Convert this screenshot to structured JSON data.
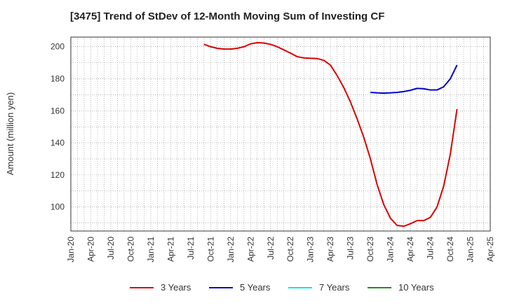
{
  "title": "[3475]  Trend of StDev of 12-Month Moving Sum of Investing CF",
  "chart_data": {
    "type": "line",
    "ylabel": "Amount (million yen)",
    "xlabel": "",
    "ylim": [
      85,
      206
    ],
    "y_ticks": [
      100,
      120,
      140,
      160,
      180,
      200
    ],
    "x_ticks": [
      "Jan-20",
      "Apr-20",
      "Jul-20",
      "Oct-20",
      "Jan-21",
      "Apr-21",
      "Jul-21",
      "Oct-21",
      "Jan-22",
      "Apr-22",
      "Jul-22",
      "Oct-22",
      "Jan-23",
      "Apr-23",
      "Jul-23",
      "Oct-23",
      "Jan-24",
      "Apr-24",
      "Jul-24",
      "Oct-24",
      "Jan-25",
      "Apr-25"
    ],
    "x_range": [
      "Jan-20",
      "Apr-25"
    ],
    "grid": true,
    "legend_position": "bottom",
    "series": [
      {
        "name": "3 Years",
        "color": "#dd0000",
        "points": [
          [
            "Sep-21",
            201.5
          ],
          [
            "Oct-21",
            200.0
          ],
          [
            "Nov-21",
            199.0
          ],
          [
            "Dec-21",
            198.5
          ],
          [
            "Jan-22",
            198.5
          ],
          [
            "Feb-22",
            199.0
          ],
          [
            "Mar-22",
            200.0
          ],
          [
            "Apr-22",
            201.8
          ],
          [
            "May-22",
            202.5
          ],
          [
            "Jun-22",
            202.3
          ],
          [
            "Jul-22",
            201.5
          ],
          [
            "Aug-22",
            200.0
          ],
          [
            "Sep-22",
            198.0
          ],
          [
            "Oct-22",
            196.0
          ],
          [
            "Nov-22",
            193.8
          ],
          [
            "Dec-22",
            193.0
          ],
          [
            "Jan-23",
            192.8
          ],
          [
            "Feb-23",
            192.6
          ],
          [
            "Mar-23",
            191.5
          ],
          [
            "Apr-23",
            188.5
          ],
          [
            "May-23",
            182.0
          ],
          [
            "Jun-23",
            174.5
          ],
          [
            "Jul-23",
            165.5
          ],
          [
            "Aug-23",
            155.0
          ],
          [
            "Sep-23",
            143.5
          ],
          [
            "Oct-23",
            130.0
          ],
          [
            "Nov-23",
            114.0
          ],
          [
            "Dec-23",
            101.5
          ],
          [
            "Jan-24",
            93.0
          ],
          [
            "Feb-24",
            88.5
          ],
          [
            "Mar-24",
            88.0
          ],
          [
            "Apr-24",
            89.5
          ],
          [
            "May-24",
            91.5
          ],
          [
            "Jun-24",
            91.5
          ],
          [
            "Jul-24",
            93.5
          ],
          [
            "Aug-24",
            100.0
          ],
          [
            "Sep-24",
            113.0
          ],
          [
            "Oct-24",
            133.0
          ],
          [
            "Nov-24",
            161.0
          ]
        ]
      },
      {
        "name": "5 Years",
        "color": "#0000cc",
        "points": [
          [
            "Oct-23",
            171.5
          ],
          [
            "Nov-23",
            171.2
          ],
          [
            "Dec-23",
            171.0
          ],
          [
            "Jan-24",
            171.2
          ],
          [
            "Feb-24",
            171.5
          ],
          [
            "Mar-24",
            172.0
          ],
          [
            "Apr-24",
            172.8
          ],
          [
            "May-24",
            174.0
          ],
          [
            "Jun-24",
            173.8
          ],
          [
            "Jul-24",
            173.0
          ],
          [
            "Aug-24",
            173.0
          ],
          [
            "Sep-24",
            175.0
          ],
          [
            "Oct-24",
            180.0
          ],
          [
            "Nov-24",
            188.5
          ]
        ]
      },
      {
        "name": "7 Years",
        "color": "#00e5ee",
        "points": []
      },
      {
        "name": "10 Years",
        "color": "#228b22",
        "points": []
      }
    ]
  }
}
